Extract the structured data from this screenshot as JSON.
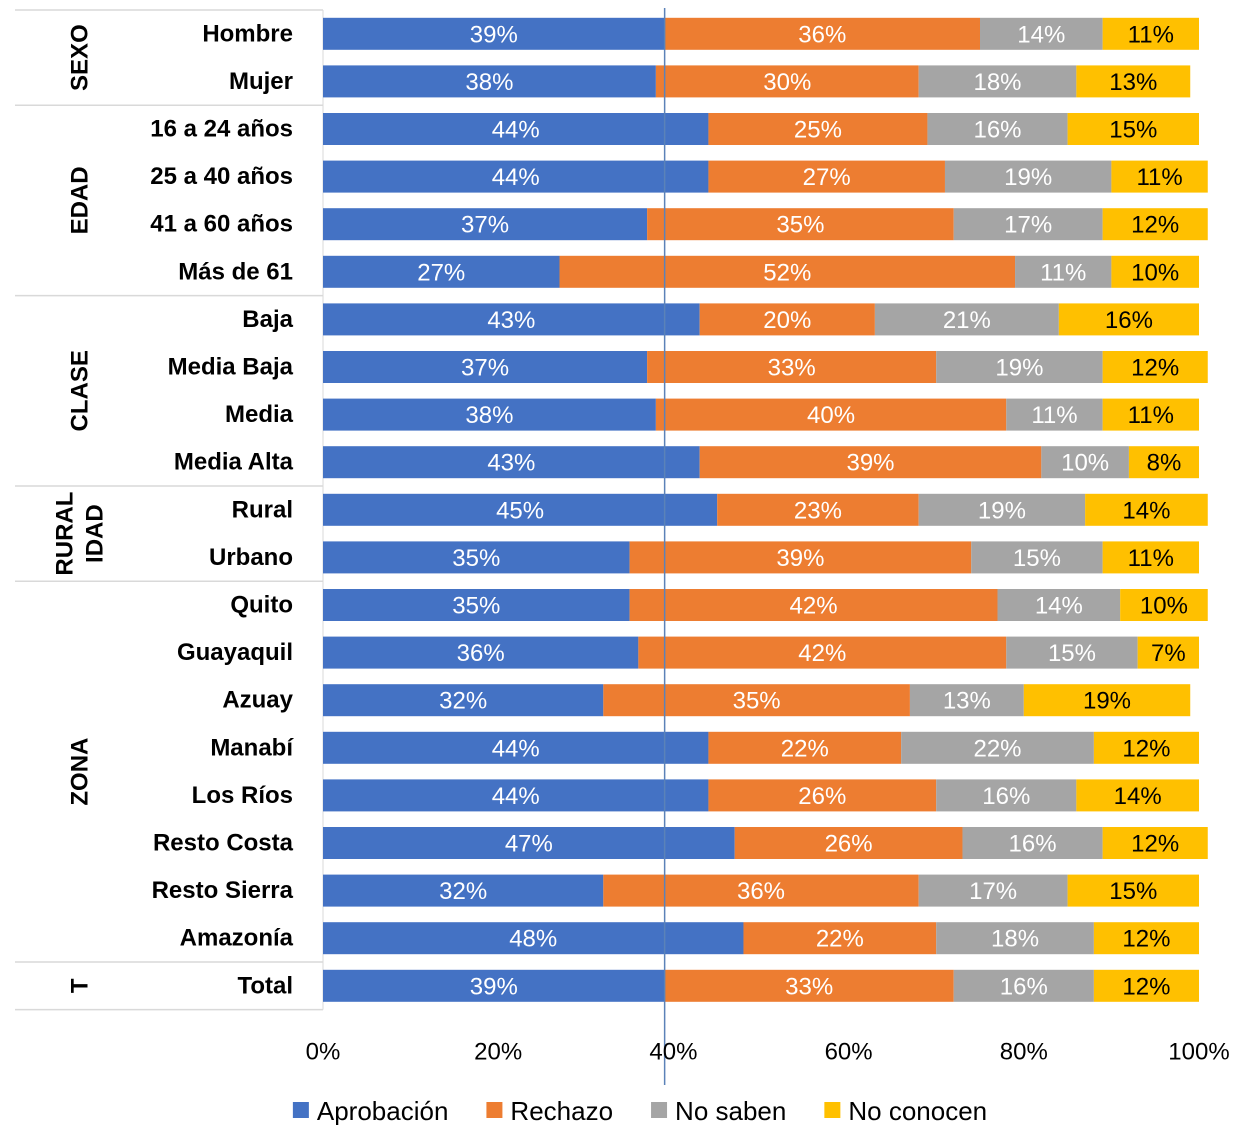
{
  "chart_data": {
    "type": "bar",
    "orientation": "horizontal",
    "stacked": true,
    "percent_stacked": true,
    "groups": [
      {
        "label": "SEXO",
        "rows": [
          "Hombre",
          "Mujer"
        ]
      },
      {
        "label": "EDAD",
        "rows": [
          "16 a 24 años",
          "25 a 40 años",
          "41 a 60 años",
          "Más de 61"
        ]
      },
      {
        "label": "CLASE",
        "rows": [
          "Baja",
          "Media Baja",
          "Media",
          "Media Alta"
        ]
      },
      {
        "label": "RURAL IDAD",
        "label_lines": [
          "RURAL",
          "IDAD"
        ],
        "rows": [
          "Rural",
          "Urbano"
        ]
      },
      {
        "label": "ZONA",
        "rows": [
          "Quito",
          "Guayaquil",
          "Azuay",
          "Manabí",
          "Los Ríos",
          "Resto Costa",
          "Resto Sierra",
          "Amazonía"
        ]
      },
      {
        "label": "T",
        "rows": [
          "Total"
        ]
      }
    ],
    "categories": [
      "Hombre",
      "Mujer",
      "16 a 24 años",
      "25 a 40 años",
      "41 a 60 años",
      "Más de 61",
      "Baja",
      "Media Baja",
      "Media",
      "Media Alta",
      "Rural",
      "Urbano",
      "Quito",
      "Guayaquil",
      "Azuay",
      "Manabí",
      "Los Ríos",
      "Resto Costa",
      "Resto Sierra",
      "Amazonía",
      "Total"
    ],
    "series": [
      {
        "name": "Aprobación",
        "color": "#4472C4",
        "label_color": "#FFFFFF",
        "values": [
          39,
          38,
          44,
          44,
          37,
          27,
          43,
          37,
          38,
          43,
          45,
          35,
          35,
          36,
          32,
          44,
          44,
          47,
          32,
          48,
          39
        ]
      },
      {
        "name": "Rechazo",
        "color": "#ED7D31",
        "label_color": "#FFFFFF",
        "values": [
          36,
          30,
          25,
          27,
          35,
          52,
          20,
          33,
          40,
          39,
          23,
          39,
          42,
          42,
          35,
          22,
          26,
          26,
          36,
          22,
          33
        ]
      },
      {
        "name": "No saben",
        "color": "#A5A5A5",
        "label_color": "#FFFFFF",
        "values": [
          14,
          18,
          16,
          19,
          17,
          11,
          21,
          19,
          11,
          10,
          19,
          15,
          14,
          15,
          13,
          22,
          16,
          16,
          17,
          18,
          16
        ]
      },
      {
        "name": "No conocen",
        "color": "#FFC000",
        "label_color": "#000000",
        "values": [
          11,
          13,
          15,
          11,
          12,
          10,
          16,
          12,
          11,
          8,
          14,
          11,
          10,
          7,
          19,
          12,
          14,
          12,
          15,
          12,
          12
        ]
      }
    ],
    "data_label_suffix": "%",
    "x_ticks": [
      "0%",
      "20%",
      "40%",
      "60%",
      "80%",
      "100%"
    ],
    "xlim": [
      0,
      100
    ],
    "reference_line_x": 39,
    "grid": false,
    "legend_position": "bottom",
    "title": "",
    "xlabel": "",
    "ylabel": ""
  }
}
